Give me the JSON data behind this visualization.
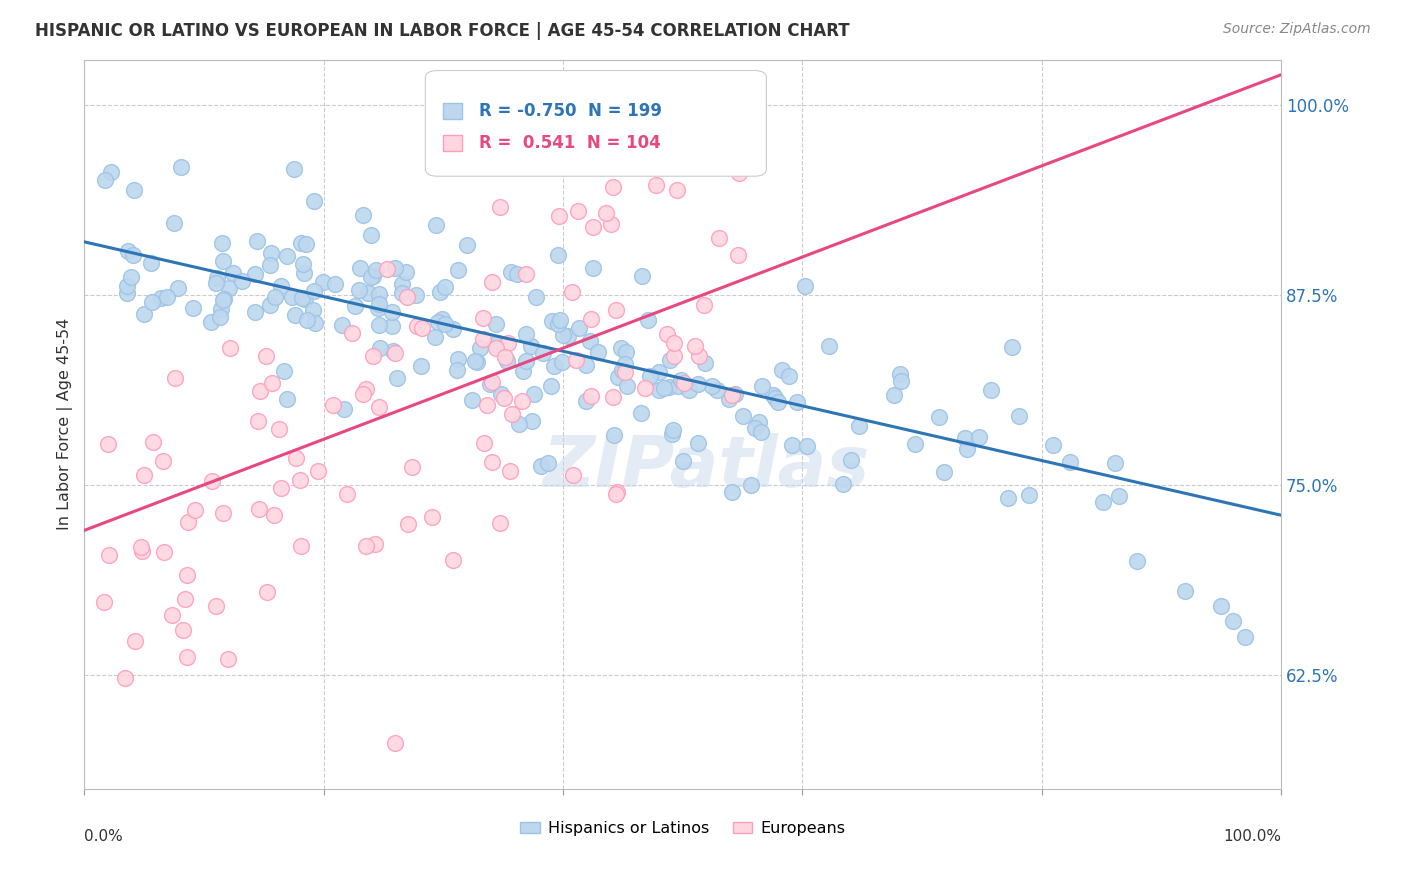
{
  "title": "HISPANIC OR LATINO VS EUROPEAN IN LABOR FORCE | AGE 45-54 CORRELATION CHART",
  "source": "Source: ZipAtlas.com",
  "ylabel": "In Labor Force | Age 45-54",
  "ytick_labels": [
    "62.5%",
    "75.0%",
    "87.5%",
    "100.0%"
  ],
  "ytick_values": [
    0.625,
    0.75,
    0.875,
    1.0
  ],
  "xlim": [
    0.0,
    1.0
  ],
  "ylim": [
    0.55,
    1.03
  ],
  "blue_R": -0.75,
  "blue_N": 199,
  "pink_R": 0.541,
  "pink_N": 104,
  "blue_face_color": "#BDD7EE",
  "blue_edge_color": "#9DC3E6",
  "pink_face_color": "#FFD6E0",
  "pink_edge_color": "#FF9EBC",
  "blue_line_color": "#2E75B6",
  "pink_line_color": "#E84880",
  "legend_label_blue": "Hispanics or Latinos",
  "legend_label_pink": "Europeans",
  "watermark": "ZIPatlas",
  "background_color": "#FFFFFF",
  "grid_color": "#CCCCCC",
  "blue_line_start_y": 0.91,
  "blue_line_end_y": 0.73,
  "pink_line_start_y": 0.72,
  "pink_line_end_y": 1.02,
  "seed_blue": 1234,
  "seed_pink": 5678
}
